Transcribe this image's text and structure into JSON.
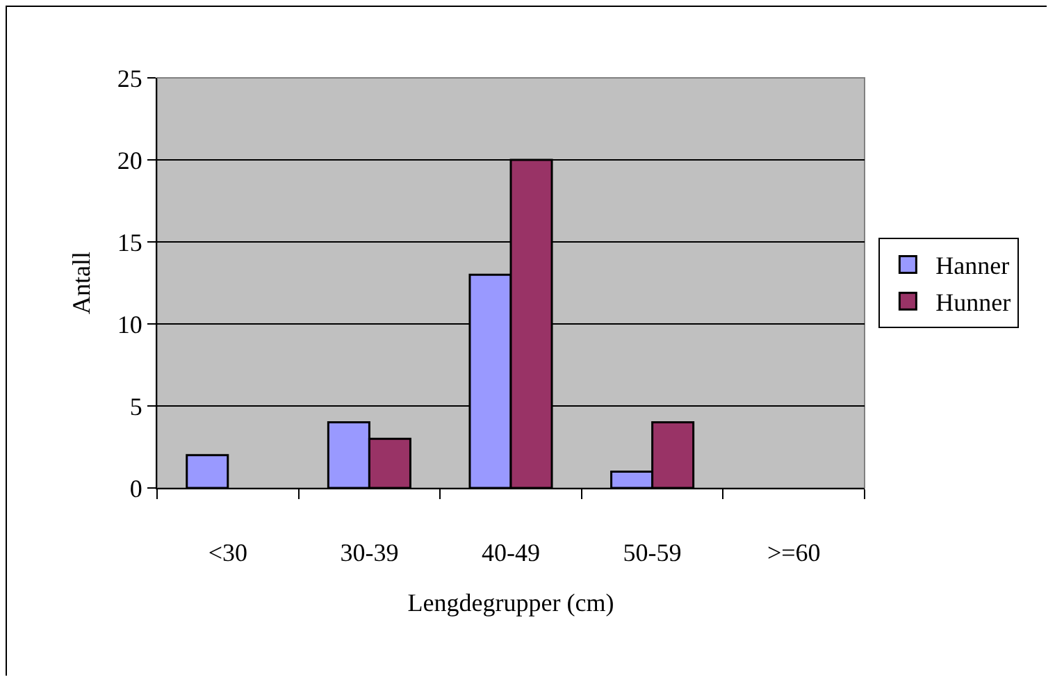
{
  "chart_data": {
    "type": "bar",
    "xlabel": "Lengdegrupper (cm)",
    "ylabel": "Antall",
    "categories": [
      "<30",
      "30-39",
      "40-49",
      "50-59",
      ">=60"
    ],
    "series": [
      {
        "name": "Hanner",
        "color": "#9999ff",
        "values": [
          2,
          4,
          13,
          1,
          null
        ]
      },
      {
        "name": "Hunner",
        "color": "#993366",
        "values": [
          null,
          3,
          20,
          4,
          null
        ]
      }
    ],
    "ylim": [
      0,
      25
    ],
    "yticks": [
      0,
      5,
      10,
      15,
      20,
      25
    ],
    "grid": "y",
    "legend": "right"
  }
}
